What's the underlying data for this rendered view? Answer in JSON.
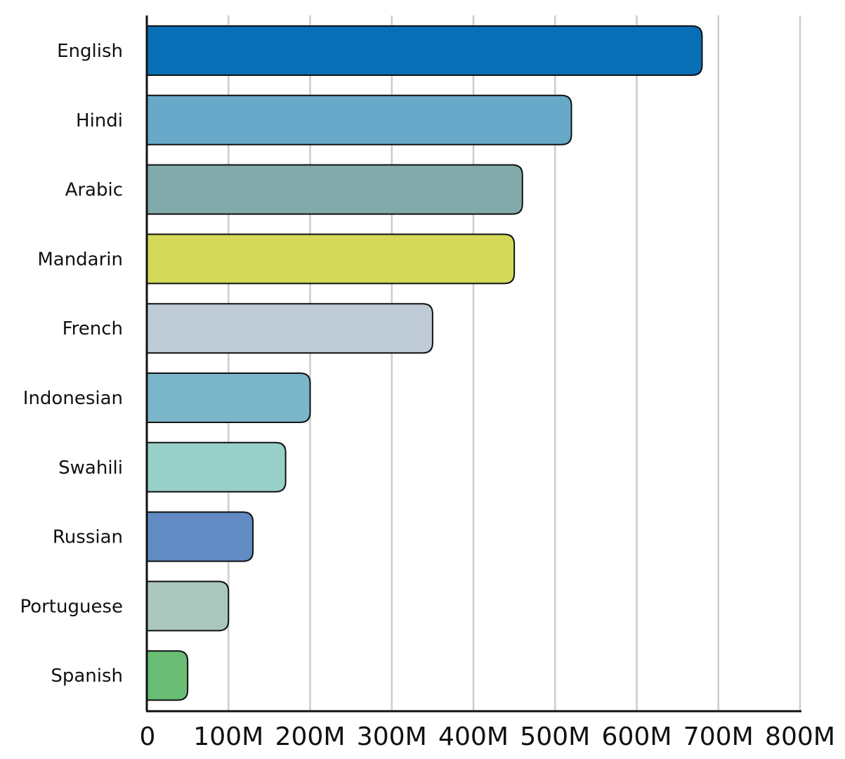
{
  "chart_data": {
    "type": "bar",
    "orientation": "horizontal",
    "title": "",
    "xlabel": "",
    "ylabel": "",
    "xlim": [
      0,
      800000000
    ],
    "grid": "vertical",
    "legend": "none",
    "categories": [
      "English",
      "Hindi",
      "Arabic",
      "Mandarin",
      "French",
      "Indonesian",
      "Swahili",
      "Russian",
      "Portuguese",
      "Spanish"
    ],
    "values": [
      680000000,
      520000000,
      460000000,
      450000000,
      350000000,
      200000000,
      170000000,
      130000000,
      100000000,
      50000000
    ],
    "colors": [
      "#086EB6",
      "#68A9C9",
      "#82AAAA",
      "#D4D958",
      "#BFCCD8",
      "#7BB5C9",
      "#97D0C8",
      "#618BC2",
      "#ABC7BD",
      "#69BD74"
    ],
    "x_ticks": [
      0,
      100000000,
      200000000,
      300000000,
      400000000,
      500000000,
      600000000,
      700000000,
      800000000
    ],
    "x_tick_labels": [
      "0",
      "100M",
      "200M",
      "300M",
      "400M",
      "500M",
      "600M",
      "700M",
      "800M"
    ]
  }
}
